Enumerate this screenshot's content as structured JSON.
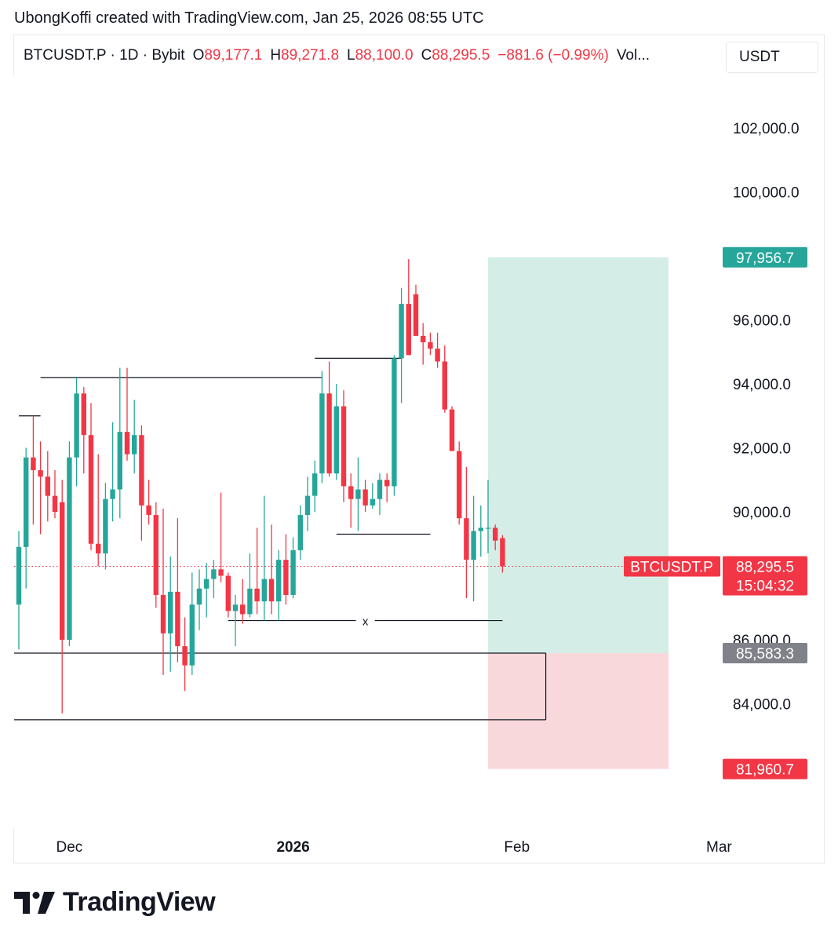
{
  "attribution": "UbongKoffi created with TradingView.com, Jan 25, 2026 08:55 UTC",
  "legend": {
    "symbol": "BTCUSDT.P",
    "interval": "1D",
    "exchange": "Bybit",
    "open_label": "O",
    "open": "89,177.1",
    "high_label": "H",
    "high": "89,271.8",
    "low_label": "L",
    "low": "88,100.0",
    "close_label": "C",
    "close": "88,295.5",
    "change": "−881.6 (−0.99%)",
    "volume_label": "Vol..."
  },
  "currency": "USDT",
  "brand": {
    "name": "TradingView",
    "logo_icon": "tradingview-logo-icon"
  },
  "colors": {
    "up": "#26a69a",
    "down": "#f23645",
    "target_zone": "#d4ede7",
    "stop_zone": "#f9d8dc",
    "stop_label": "#808289",
    "drawing": "#131722"
  },
  "chart_data": {
    "type": "candlestick",
    "ylim": [
      80800,
      104700
    ],
    "y_ticks": [
      "102,000.0",
      "100,000.0",
      "96,000.0",
      "94,000.0",
      "92,000.0",
      "90,000.0",
      "86,000.0",
      "84,000.0"
    ],
    "x_ticks": [
      {
        "label": "Dec",
        "date": "2025-12-01"
      },
      {
        "label": "2026",
        "date": "2026-01-01"
      },
      {
        "label": "Feb",
        "date": "2026-02-01"
      },
      {
        "label": "Mar",
        "date": "2026-03-01"
      }
    ],
    "start_date": "2025-11-24",
    "candles": [
      {
        "o": 87100,
        "h": 89400,
        "l": 85700,
        "c": 88900
      },
      {
        "o": 88900,
        "h": 92000,
        "l": 87600,
        "c": 91700
      },
      {
        "o": 91700,
        "h": 93000,
        "l": 89600,
        "c": 91300
      },
      {
        "o": 91300,
        "h": 92200,
        "l": 89300,
        "c": 91100
      },
      {
        "o": 91100,
        "h": 91900,
        "l": 89700,
        "c": 90500
      },
      {
        "o": 90500,
        "h": 91300,
        "l": 89800,
        "c": 90000
      },
      {
        "o": 90300,
        "h": 91000,
        "l": 83700,
        "c": 86000
      },
      {
        "o": 86000,
        "h": 92200,
        "l": 85800,
        "c": 91700
      },
      {
        "o": 91700,
        "h": 94200,
        "l": 90800,
        "c": 93700
      },
      {
        "o": 93700,
        "h": 93900,
        "l": 91200,
        "c": 92400
      },
      {
        "o": 92400,
        "h": 93400,
        "l": 88800,
        "c": 89000
      },
      {
        "o": 89000,
        "h": 91800,
        "l": 88300,
        "c": 88700
      },
      {
        "o": 88700,
        "h": 90900,
        "l": 88200,
        "c": 90400
      },
      {
        "o": 90400,
        "h": 92800,
        "l": 89700,
        "c": 90700
      },
      {
        "o": 90700,
        "h": 94500,
        "l": 89800,
        "c": 92500
      },
      {
        "o": 92500,
        "h": 94500,
        "l": 91600,
        "c": 91800
      },
      {
        "o": 91800,
        "h": 93500,
        "l": 91200,
        "c": 92400
      },
      {
        "o": 92400,
        "h": 92700,
        "l": 89100,
        "c": 90200
      },
      {
        "o": 90200,
        "h": 91000,
        "l": 89600,
        "c": 89900
      },
      {
        "o": 89900,
        "h": 90300,
        "l": 87000,
        "c": 87400
      },
      {
        "o": 87400,
        "h": 90100,
        "l": 84900,
        "c": 86200
      },
      {
        "o": 86200,
        "h": 88600,
        "l": 85000,
        "c": 87500
      },
      {
        "o": 87500,
        "h": 89800,
        "l": 85300,
        "c": 85800
      },
      {
        "o": 85800,
        "h": 86700,
        "l": 84400,
        "c": 85200
      },
      {
        "o": 85200,
        "h": 88100,
        "l": 84900,
        "c": 87100
      },
      {
        "o": 87100,
        "h": 88200,
        "l": 86300,
        "c": 87600
      },
      {
        "o": 87600,
        "h": 88400,
        "l": 86700,
        "c": 87900
      },
      {
        "o": 87900,
        "h": 88500,
        "l": 87300,
        "c": 88200
      },
      {
        "o": 88200,
        "h": 90600,
        "l": 87800,
        "c": 88000
      },
      {
        "o": 88000,
        "h": 88100,
        "l": 86700,
        "c": 86900
      },
      {
        "o": 86900,
        "h": 87400,
        "l": 85800,
        "c": 87100
      },
      {
        "o": 87100,
        "h": 87900,
        "l": 86500,
        "c": 86800
      },
      {
        "o": 86800,
        "h": 88700,
        "l": 86700,
        "c": 87600
      },
      {
        "o": 87600,
        "h": 89500,
        "l": 86800,
        "c": 87200
      },
      {
        "o": 87200,
        "h": 90500,
        "l": 86600,
        "c": 87900
      },
      {
        "o": 87900,
        "h": 89600,
        "l": 86800,
        "c": 87200
      },
      {
        "o": 87200,
        "h": 88800,
        "l": 86600,
        "c": 88500
      },
      {
        "o": 88500,
        "h": 89300,
        "l": 87100,
        "c": 87400
      },
      {
        "o": 87400,
        "h": 89200,
        "l": 87300,
        "c": 88800
      },
      {
        "o": 88800,
        "h": 90200,
        "l": 88500,
        "c": 89900
      },
      {
        "o": 89900,
        "h": 91100,
        "l": 89400,
        "c": 90500
      },
      {
        "o": 90500,
        "h": 91600,
        "l": 90000,
        "c": 91200
      },
      {
        "o": 91200,
        "h": 94400,
        "l": 90900,
        "c": 93700
      },
      {
        "o": 93700,
        "h": 94700,
        "l": 91100,
        "c": 91200
      },
      {
        "o": 91200,
        "h": 94000,
        "l": 91000,
        "c": 93300
      },
      {
        "o": 93300,
        "h": 93800,
        "l": 90300,
        "c": 90800
      },
      {
        "o": 90800,
        "h": 91200,
        "l": 89500,
        "c": 90400
      },
      {
        "o": 90400,
        "h": 91700,
        "l": 89400,
        "c": 90700
      },
      {
        "o": 90700,
        "h": 91000,
        "l": 90000,
        "c": 90200
      },
      {
        "o": 90200,
        "h": 90900,
        "l": 90100,
        "c": 90400
      },
      {
        "o": 90400,
        "h": 91200,
        "l": 89900,
        "c": 91000
      },
      {
        "o": 91000,
        "h": 91200,
        "l": 90300,
        "c": 90800
      },
      {
        "o": 90800,
        "h": 94900,
        "l": 90500,
        "c": 94800
      },
      {
        "o": 94800,
        "h": 97000,
        "l": 93400,
        "c": 96500
      },
      {
        "o": 96500,
        "h": 97900,
        "l": 94900,
        "c": 94900
      },
      {
        "o": 96800,
        "h": 97100,
        "l": 95500,
        "c": 95500
      },
      {
        "o": 95500,
        "h": 95900,
        "l": 94600,
        "c": 95300
      },
      {
        "o": 95300,
        "h": 95600,
        "l": 94900,
        "c": 95100
      },
      {
        "o": 95100,
        "h": 95600,
        "l": 94500,
        "c": 94700
      },
      {
        "o": 94700,
        "h": 95200,
        "l": 93100,
        "c": 93200
      },
      {
        "o": 93200,
        "h": 93300,
        "l": 91900,
        "c": 91900
      },
      {
        "o": 91900,
        "h": 92200,
        "l": 89600,
        "c": 89800
      },
      {
        "o": 89800,
        "h": 91400,
        "l": 87300,
        "c": 88500
      },
      {
        "o": 88500,
        "h": 90500,
        "l": 87200,
        "c": 89400
      },
      {
        "o": 89400,
        "h": 90200,
        "l": 88600,
        "c": 89500
      },
      {
        "o": 89500,
        "h": 91000,
        "l": 88700,
        "c": 89500
      },
      {
        "o": 89500,
        "h": 89600,
        "l": 88800,
        "c": 89100
      },
      {
        "o": 89177.1,
        "h": 89271.8,
        "l": 88100,
        "c": 88295.5
      }
    ],
    "horizontal_levels": [
      {
        "start": 0,
        "end": 3,
        "price": 93000
      },
      {
        "start": 3,
        "end": 42,
        "price": 94200
      },
      {
        "start": 41,
        "end": 53,
        "price": 94800
      },
      {
        "start": 44,
        "end": 57,
        "price": 89300
      },
      {
        "start": 29,
        "end": 67,
        "price": 86600,
        "label": "x"
      },
      {
        "start": -4,
        "end": 73,
        "price": 85583.3
      },
      {
        "start": -4,
        "end": 73,
        "price": 83500
      }
    ],
    "position": {
      "type": "long",
      "start": 65,
      "end": 90,
      "entry": 85583.3,
      "target": 97956.7,
      "stop": 81960.7,
      "entry_label": "85,583.3",
      "target_label": "97,956.7",
      "stop_label": "81,960.7"
    },
    "last_price": {
      "symbol": "BTCUSDT.P",
      "price_label": "88,295.5",
      "countdown": "15:04:32",
      "price": 88295.5
    }
  }
}
